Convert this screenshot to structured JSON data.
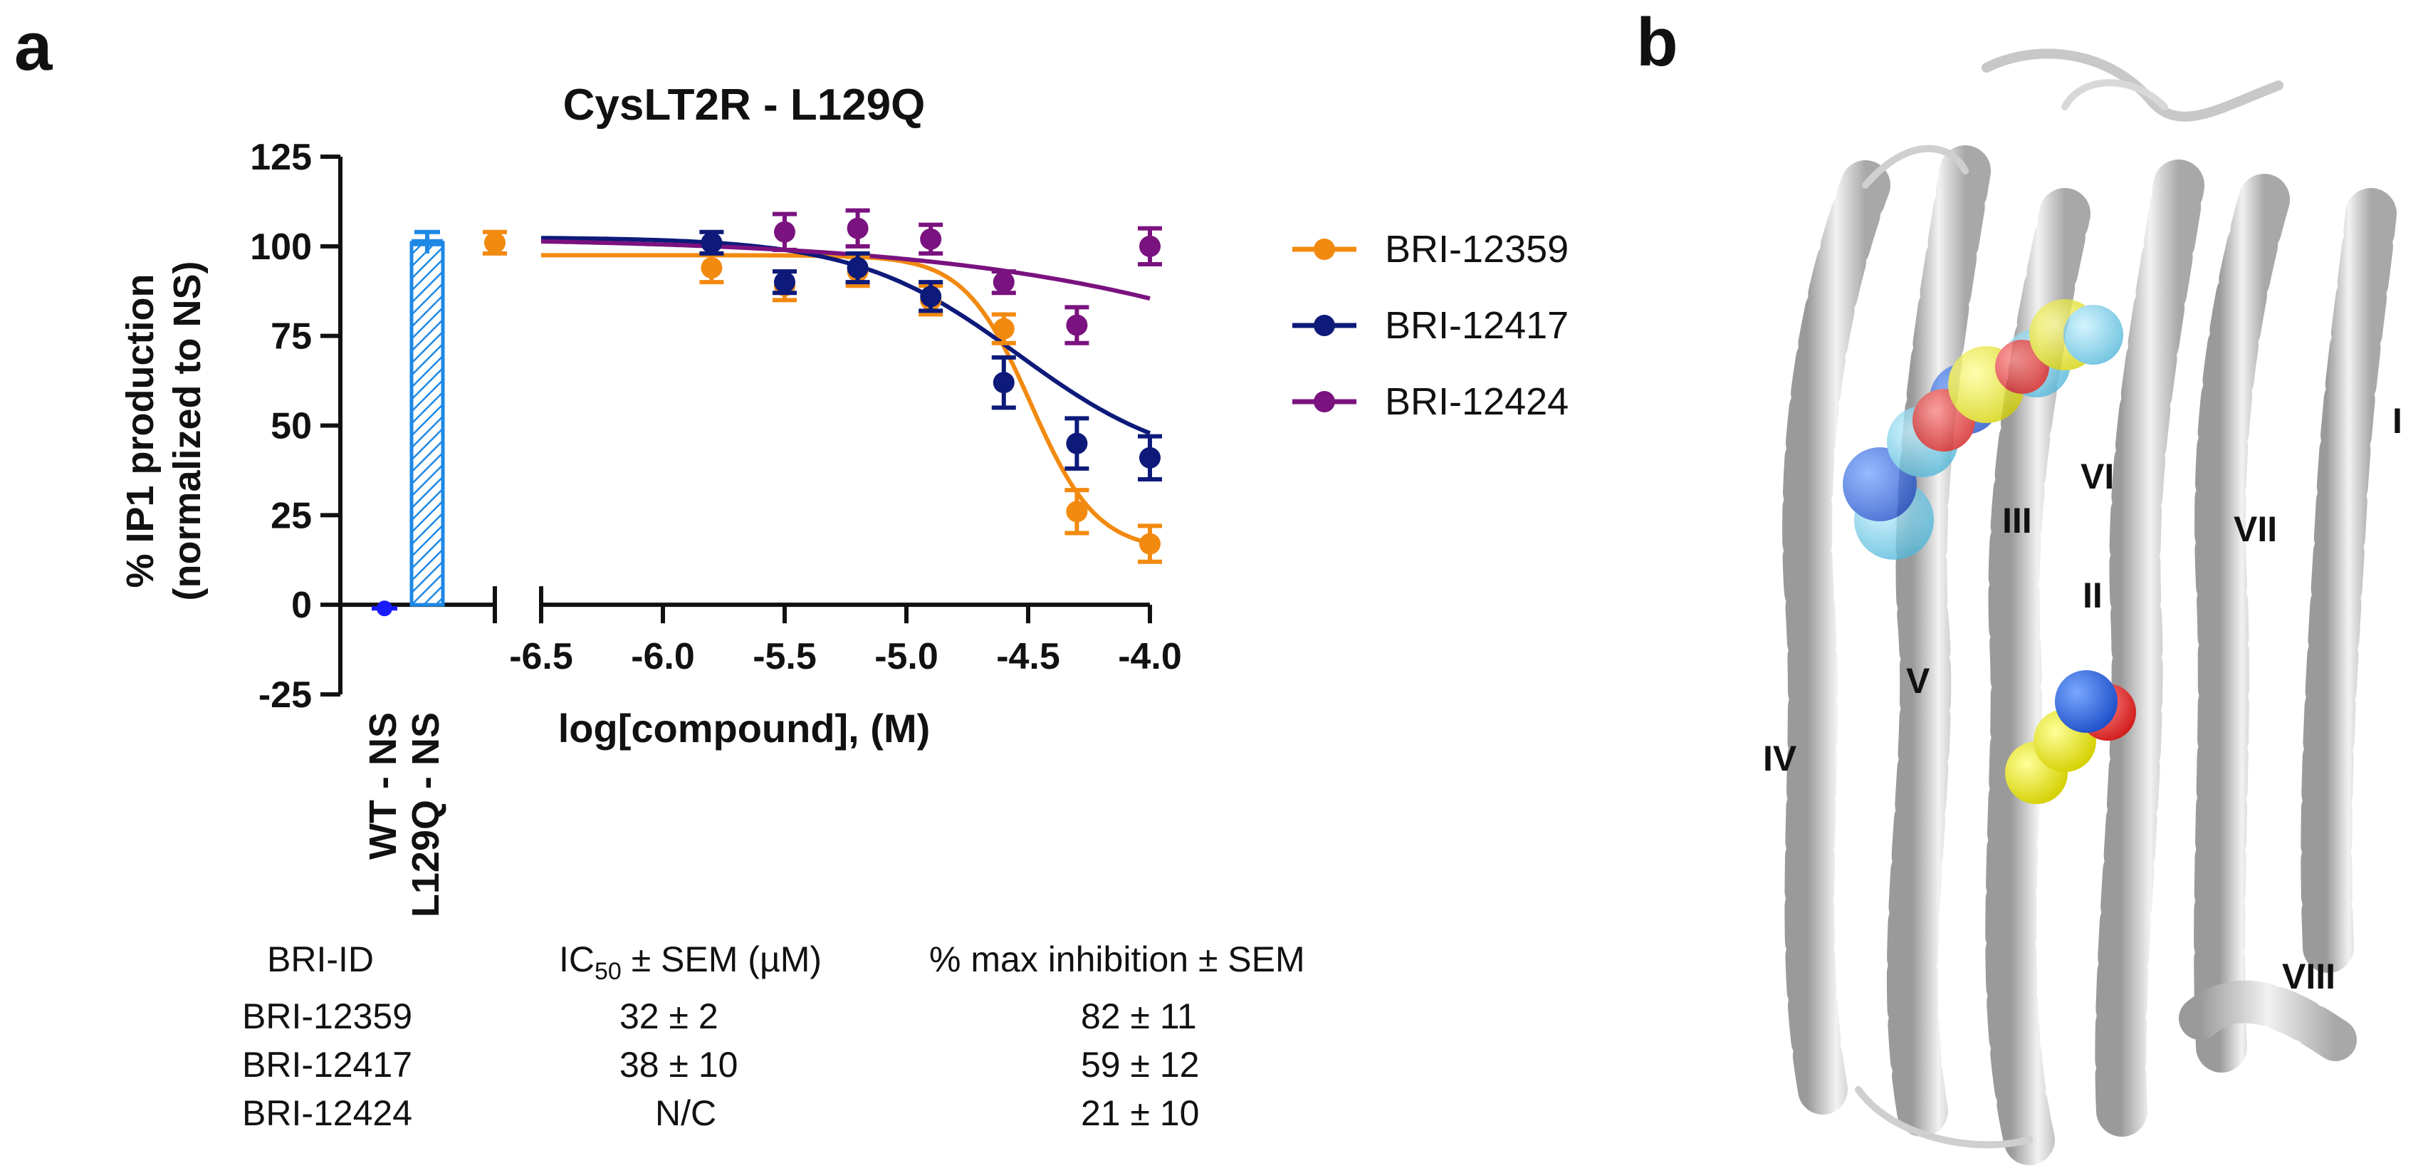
{
  "panel_a_label": "a",
  "panel_b_label": "b",
  "chart_data": {
    "type": "line",
    "title": "CysLT2R - L129Q",
    "ylabel_lines": [
      "% IP1 production",
      "(normalized to NS)"
    ],
    "xlabel": "log[compound], (M)",
    "ylim": [
      -25,
      125
    ],
    "yticks": [
      125,
      100,
      75,
      50,
      25,
      0,
      -25
    ],
    "xlim": [
      -6.5,
      -4.0
    ],
    "xticks": [
      "-6.5",
      "-6.0",
      "-5.5",
      "-5.0",
      "-4.5",
      "-4.0"
    ],
    "bars": [
      {
        "label": "WT - NS",
        "value": -1,
        "err": 1,
        "color": "#1a1aff",
        "style": "point"
      },
      {
        "label": "L129Q - NS",
        "value": 101,
        "err": 3,
        "color": "#1e88e5",
        "style": "hatched"
      }
    ],
    "series": [
      {
        "name": "BRI-12359",
        "color": "#f28a10",
        "ns_point": {
          "value": 101,
          "err": 3
        },
        "x": [
          -5.8,
          -5.5,
          -5.2,
          -4.9,
          -4.6,
          -4.3,
          -4.0
        ],
        "values": [
          94,
          89,
          93,
          85,
          77,
          26,
          17
        ],
        "errors": [
          4,
          4,
          4,
          4,
          4,
          6,
          5
        ],
        "fit": {
          "top": 97.5,
          "bottom": 15,
          "logIC50": -4.49,
          "hill": 3.2
        }
      },
      {
        "name": "BRI-12417",
        "color": "#0d1a7a",
        "x": [
          -5.8,
          -5.5,
          -5.2,
          -4.9,
          -4.6,
          -4.3,
          -4.0
        ],
        "values": [
          101,
          90,
          94,
          86,
          62,
          45,
          41
        ],
        "errors": [
          3,
          3,
          4,
          4,
          7,
          7,
          6
        ],
        "fit": {
          "top": 102.5,
          "bottom": 37,
          "logIC50": -4.54,
          "hill": 1.3
        }
      },
      {
        "name": "BRI-12424",
        "color": "#7a127f",
        "x": [
          -5.5,
          -5.2,
          -4.9,
          -4.6,
          -4.3,
          -4.0
        ],
        "values": [
          104,
          105,
          102,
          90,
          78,
          100
        ],
        "errors": [
          5,
          5,
          4,
          3,
          5,
          5
        ],
        "fit": {
          "top": 102.5,
          "bottom": 0,
          "logIC50": -2.6,
          "hill": 0.5
        }
      }
    ]
  },
  "table": {
    "headers": [
      "BRI-ID",
      "IC",
      "50",
      " ± SEM (µM)",
      "% max inhibition ± SEM"
    ],
    "rows": [
      {
        "id": "BRI-12359",
        "ic50": "32 ± 2",
        "maxinh": "82 ± 11"
      },
      {
        "id": "BRI-12417",
        "ic50": "38 ± 10",
        "maxinh": "59 ± 12"
      },
      {
        "id": "BRI-12424",
        "ic50": "N/C",
        "maxinh": "21 ± 10"
      }
    ]
  },
  "structure": {
    "helix_labels": [
      "I",
      "II",
      "III",
      "IV",
      "V",
      "VI",
      "VII",
      "VIII"
    ]
  }
}
